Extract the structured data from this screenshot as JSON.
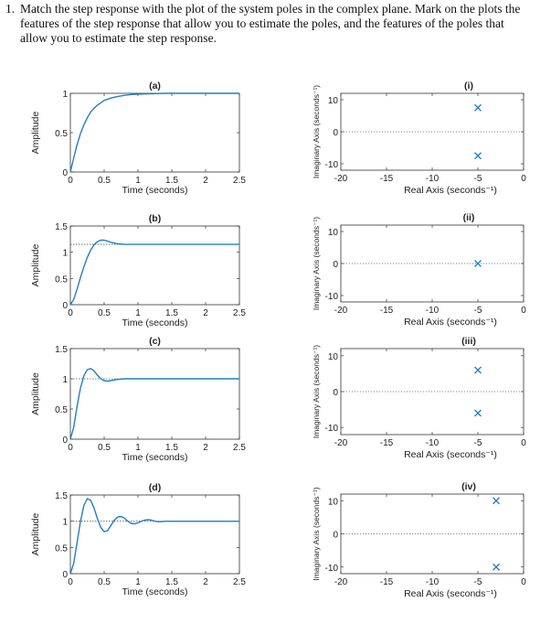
{
  "question": {
    "number": "1.",
    "line1": "Match the step response with the plot of the system poles in the complex plane. Mark on the plots the",
    "line2": "features of the step response that allow you to estimate the poles, and the features of the poles that",
    "line3": "allow you to estimate the step response."
  },
  "colors": {
    "curve": "#1f7fc8",
    "marker": "#1f7fc8",
    "axes": "#333333",
    "reference": "#555555"
  },
  "chart_data": [
    {
      "type": "line",
      "label": "(a)",
      "xlabel": "Time (seconds)",
      "ylabel": "Amplitude",
      "xlim": [
        0,
        2.5
      ],
      "ylim": [
        0,
        1
      ],
      "xticks": [
        "0",
        "0.5",
        "1",
        "1.5",
        "2",
        "2.5"
      ],
      "yticks": [
        "0",
        "0.5",
        "1"
      ],
      "final_value": 1,
      "x": [
        0,
        0.05,
        0.1,
        0.15,
        0.2,
        0.25,
        0.3,
        0.35,
        0.4,
        0.45,
        0.5,
        0.6,
        0.7,
        0.8,
        0.9,
        1.0,
        1.2,
        1.4,
        1.6,
        1.8,
        2.0,
        2.2,
        2.5
      ],
      "y": [
        0,
        0.18,
        0.35,
        0.49,
        0.6,
        0.69,
        0.76,
        0.81,
        0.85,
        0.88,
        0.91,
        0.94,
        0.96,
        0.975,
        0.985,
        0.99,
        0.995,
        1,
        1,
        1,
        1,
        1,
        1
      ]
    },
    {
      "type": "line",
      "label": "(b)",
      "xlabel": "Time (seconds)",
      "ylabel": "Amplitude",
      "xlim": [
        0,
        2.5
      ],
      "ylim": [
        0,
        1.5
      ],
      "xticks": [
        "0",
        "0.5",
        "1",
        "1.5",
        "2",
        "2.5"
      ],
      "yticks": [
        "0",
        "0.5",
        "1",
        "1.5"
      ],
      "final_value": 1.15,
      "x": [
        0,
        0.05,
        0.1,
        0.15,
        0.2,
        0.25,
        0.3,
        0.35,
        0.4,
        0.45,
        0.5,
        0.55,
        0.6,
        0.7,
        0.8,
        0.9,
        1.0,
        1.2,
        1.5,
        2.0,
        2.5
      ],
      "y": [
        0,
        0.1,
        0.3,
        0.52,
        0.72,
        0.9,
        1.04,
        1.14,
        1.2,
        1.23,
        1.23,
        1.21,
        1.19,
        1.16,
        1.15,
        1.15,
        1.15,
        1.15,
        1.15,
        1.15,
        1.15
      ]
    },
    {
      "type": "line",
      "label": "(c)",
      "xlabel": "Time (seconds)",
      "ylabel": "Amplitude",
      "xlim": [
        0,
        2.5
      ],
      "ylim": [
        0,
        1.5
      ],
      "xticks": [
        "0",
        "0.5",
        "1",
        "1.5",
        "2",
        "2.5"
      ],
      "yticks": [
        "0",
        "0.5",
        "1",
        "1.5"
      ],
      "final_value": 1,
      "x": [
        0,
        0.05,
        0.1,
        0.15,
        0.2,
        0.25,
        0.3,
        0.35,
        0.4,
        0.45,
        0.5,
        0.55,
        0.6,
        0.7,
        0.8,
        0.9,
        1.0,
        1.2,
        1.5,
        2.0,
        2.5
      ],
      "y": [
        0,
        0.2,
        0.55,
        0.85,
        1.05,
        1.15,
        1.17,
        1.13,
        1.06,
        1.0,
        0.97,
        0.96,
        0.97,
        0.99,
        1.0,
        1.0,
        1.0,
        1.0,
        1.0,
        1.0,
        1.0
      ]
    },
    {
      "type": "line",
      "label": "(d)",
      "xlabel": "Time (seconds)",
      "ylabel": "Amplitude",
      "xlim": [
        0,
        2.5
      ],
      "ylim": [
        0,
        1.5
      ],
      "xticks": [
        "0",
        "0.5",
        "1",
        "1.5",
        "2",
        "2.5"
      ],
      "yticks": [
        "0",
        "0.5",
        "1",
        "1.5"
      ],
      "final_value": 1,
      "x": [
        0,
        0.05,
        0.1,
        0.15,
        0.2,
        0.25,
        0.3,
        0.35,
        0.4,
        0.45,
        0.5,
        0.55,
        0.6,
        0.65,
        0.7,
        0.75,
        0.8,
        0.85,
        0.9,
        0.95,
        1.0,
        1.05,
        1.1,
        1.15,
        1.2,
        1.25,
        1.3,
        1.35,
        1.4,
        1.5,
        1.6,
        1.7,
        1.8,
        2.0,
        2.2,
        2.5
      ],
      "y": [
        0,
        0.2,
        0.6,
        1.0,
        1.3,
        1.43,
        1.4,
        1.25,
        1.05,
        0.88,
        0.8,
        0.82,
        0.92,
        1.02,
        1.08,
        1.09,
        1.06,
        1.0,
        0.96,
        0.95,
        0.97,
        1.0,
        1.02,
        1.03,
        1.02,
        1.0,
        0.99,
        0.99,
        1.0,
        1.0,
        1.0,
        1.0,
        1.0,
        1.0,
        1.0,
        1.0
      ]
    },
    {
      "type": "scatter",
      "label": "(i)",
      "xlabel": "Real Axis (seconds⁻¹)",
      "ylabel": "Imaginary Axis (seconds⁻¹)",
      "xlim": [
        -20,
        0
      ],
      "ylim": [
        -12,
        12
      ],
      "xticks": [
        "-20",
        "-15",
        "-10",
        "-5",
        "0"
      ],
      "yticks": [
        "-10",
        "0",
        "10"
      ],
      "marker": "x",
      "points": [
        [
          -5,
          7.5
        ],
        [
          -5,
          -7.5
        ]
      ]
    },
    {
      "type": "scatter",
      "label": "(ii)",
      "xlabel": "Real Axis (seconds⁻¹)",
      "ylabel": "Imaginary Axis (seconds⁻¹)",
      "xlim": [
        -20,
        0
      ],
      "ylim": [
        -12,
        12
      ],
      "xticks": [
        "-20",
        "-15",
        "-10",
        "-5",
        "0"
      ],
      "yticks": [
        "-10",
        "0",
        "10"
      ],
      "marker": "x",
      "points": [
        [
          -5,
          0
        ]
      ]
    },
    {
      "type": "scatter",
      "label": "(iii)",
      "xlabel": "Real Axis (seconds⁻¹)",
      "ylabel": "Imaginary Axis (seconds⁻¹)",
      "xlim": [
        -20,
        0
      ],
      "ylim": [
        -12,
        12
      ],
      "xticks": [
        "-20",
        "-15",
        "-10",
        "-5",
        "0"
      ],
      "yticks": [
        "-10",
        "0",
        "10"
      ],
      "marker": "x",
      "points": [
        [
          -5,
          6
        ],
        [
          -5,
          -6
        ]
      ]
    },
    {
      "type": "scatter",
      "label": "(iv)",
      "xlabel": "Real Axis (seconds⁻¹)",
      "ylabel": "Imaginary Axis (seconds⁻¹)",
      "xlim": [
        -20,
        0
      ],
      "ylim": [
        -12,
        12
      ],
      "xticks": [
        "-20",
        "-15",
        "-10",
        "-5",
        "0"
      ],
      "yticks": [
        "-10",
        "0",
        "10"
      ],
      "marker": "x",
      "points": [
        [
          -3,
          10
        ],
        [
          -3,
          -10
        ]
      ]
    }
  ]
}
